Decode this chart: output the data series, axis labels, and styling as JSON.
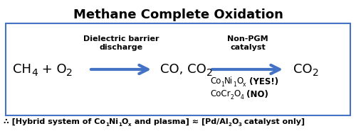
{
  "title": "Methane Complete Oxidation",
  "title_fontsize": 13,
  "title_fontweight": "bold",
  "bg_color": "#ffffff",
  "box_color": "#4472c4",
  "arrow_color": "#4472c4",
  "text_color": "#000000",
  "arrow1_label_top": "Dielectric barrier",
  "arrow1_label_bot": "discharge",
  "arrow2_label_top": "Non-PGM",
  "arrow2_label_bot": "catalyst",
  "figw": 5.0,
  "figh": 1.85,
  "dpi": 100
}
